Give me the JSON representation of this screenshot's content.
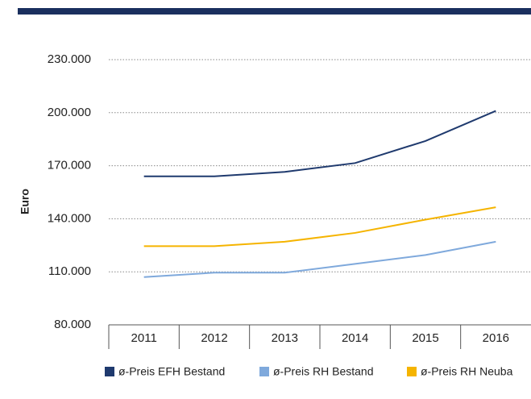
{
  "chart_data": {
    "type": "line",
    "y_label": "Euro",
    "categories": [
      "2011",
      "2012",
      "2013",
      "2014",
      "2015",
      "2016"
    ],
    "series": [
      {
        "name": "ø-Preis EFH Bestand",
        "color": "#1f3a6e",
        "values": [
          164000,
          164000,
          166500,
          171500,
          184000,
          201000
        ]
      },
      {
        "name": "ø-Preis RH Bestand",
        "color": "#7fa9dc",
        "values": [
          107000,
          109500,
          109500,
          114500,
          119500,
          127000
        ]
      },
      {
        "name": "ø-Preis RH Neuba",
        "color": "#f5b400",
        "values": [
          124500,
          124500,
          127000,
          132000,
          139500,
          146500
        ]
      }
    ],
    "ylim": [
      80000,
      230000
    ],
    "yticks": [
      {
        "value": 80000,
        "label": "80.000"
      },
      {
        "value": 110000,
        "label": "110.000"
      },
      {
        "value": 140000,
        "label": "140.000"
      },
      {
        "value": 170000,
        "label": "170.000"
      },
      {
        "value": 200000,
        "label": "200.000"
      },
      {
        "value": 230000,
        "label": "230.000"
      }
    ],
    "grid": true,
    "legend": "bottom"
  }
}
